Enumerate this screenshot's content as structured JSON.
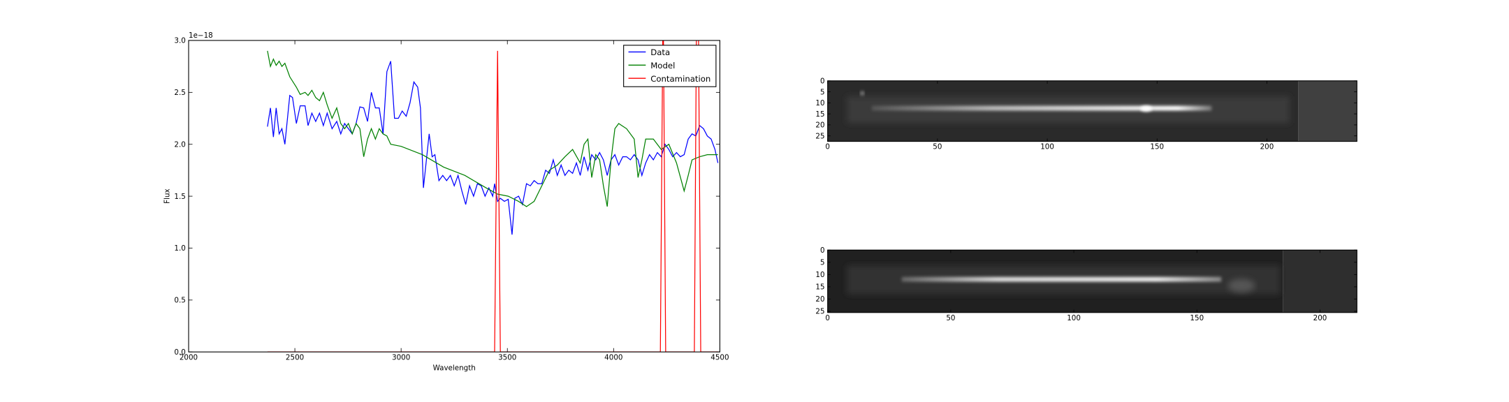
{
  "chart_data": [
    {
      "type": "line",
      "xlabel": "Wavelength",
      "ylabel": "Flux",
      "offset_label": "1e−18",
      "xlim": [
        2000,
        4500
      ],
      "ylim": [
        0,
        3
      ],
      "xticks": [
        2000,
        2500,
        3000,
        3500,
        4000,
        4500
      ],
      "yticks": [
        {
          "value": 0,
          "label": "0.0"
        },
        0.5,
        {
          "value": 1,
          "label": "1.0"
        },
        1.5,
        {
          "value": 2,
          "label": "2.0"
        },
        2.5,
        {
          "value": 3,
          "label": "3.0"
        }
      ],
      "legend": "upper right",
      "series": [
        {
          "name": "Data",
          "color": "#0000ff",
          "x": [
            2371,
            2385,
            2399,
            2412,
            2426,
            2439,
            2453,
            2476,
            2489,
            2507,
            2525,
            2548,
            2562,
            2580,
            2598,
            2616,
            2634,
            2652,
            2675,
            2697,
            2716,
            2734,
            2752,
            2770,
            2788,
            2806,
            2824,
            2842,
            2860,
            2879,
            2897,
            2915,
            2933,
            2951,
            2969,
            2987,
            3005,
            3024,
            3042,
            3060,
            3078,
            3091,
            3105,
            3119,
            3132,
            3146,
            3159,
            3178,
            3196,
            3214,
            3232,
            3250,
            3268,
            3286,
            3304,
            3322,
            3341,
            3359,
            3377,
            3395,
            3413,
            3431,
            3440,
            3454,
            3467,
            3486,
            3504,
            3522,
            3535,
            3553,
            3571,
            3590,
            3608,
            3626,
            3644,
            3662,
            3680,
            3698,
            3716,
            3735,
            3753,
            3771,
            3789,
            3807,
            3825,
            3843,
            3861,
            3879,
            3897,
            3916,
            3934,
            3952,
            3970,
            3988,
            4006,
            4024,
            4043,
            4061,
            4079,
            4097,
            4115,
            4133,
            4151,
            4169,
            4187,
            4206,
            4224,
            4242,
            4260,
            4278,
            4296,
            4314,
            4332,
            4351,
            4369,
            4387,
            4405,
            4423,
            4441,
            4459,
            4477,
            4491
          ],
          "values": [
            2.17,
            2.35,
            2.07,
            2.35,
            2.1,
            2.15,
            2.0,
            2.47,
            2.45,
            2.2,
            2.37,
            2.37,
            2.18,
            2.3,
            2.22,
            2.3,
            2.18,
            2.3,
            2.15,
            2.22,
            2.1,
            2.2,
            2.15,
            2.1,
            2.2,
            2.36,
            2.35,
            2.22,
            2.5,
            2.35,
            2.35,
            2.1,
            2.7,
            2.8,
            2.25,
            2.25,
            2.32,
            2.27,
            2.4,
            2.6,
            2.55,
            2.35,
            1.58,
            1.85,
            2.1,
            1.88,
            1.9,
            1.65,
            1.7,
            1.65,
            1.7,
            1.6,
            1.7,
            1.55,
            1.42,
            1.6,
            1.5,
            1.62,
            1.6,
            1.5,
            1.58,
            1.5,
            1.62,
            1.45,
            1.48,
            1.45,
            1.47,
            1.13,
            1.48,
            1.5,
            1.42,
            1.62,
            1.6,
            1.65,
            1.62,
            1.62,
            1.75,
            1.72,
            1.85,
            1.7,
            1.8,
            1.7,
            1.75,
            1.72,
            1.82,
            1.7,
            1.88,
            1.75,
            1.9,
            1.85,
            1.92,
            1.85,
            1.7,
            1.85,
            1.9,
            1.8,
            1.88,
            1.88,
            1.85,
            1.9,
            1.85,
            1.7,
            1.82,
            1.9,
            1.85,
            1.92,
            1.88,
            2.0,
            1.95,
            1.88,
            1.92,
            1.88,
            1.9,
            2.05,
            2.1,
            2.08,
            2.18,
            2.15,
            2.08,
            2.05,
            1.95,
            1.82
          ]
        },
        {
          "name": "Model",
          "color": "#008000",
          "x": [
            2371,
            2385,
            2399,
            2412,
            2426,
            2439,
            2453,
            2476,
            2507,
            2525,
            2548,
            2562,
            2580,
            2598,
            2616,
            2634,
            2652,
            2675,
            2697,
            2716,
            2734,
            2752,
            2770,
            2788,
            2806,
            2824,
            2842,
            2860,
            2879,
            2897,
            2915,
            2933,
            2951,
            3000,
            3100,
            3200,
            3300,
            3400,
            3454,
            3504,
            3553,
            3590,
            3626,
            3662,
            3698,
            3735,
            3771,
            3807,
            3843,
            3861,
            3879,
            3897,
            3916,
            3934,
            3952,
            3970,
            3988,
            4006,
            4024,
            4061,
            4097,
            4115,
            4133,
            4151,
            4187,
            4224,
            4260,
            4296,
            4332,
            4351,
            4369,
            4405,
            4441,
            4477,
            4491
          ],
          "values": [
            2.9,
            2.75,
            2.82,
            2.76,
            2.8,
            2.75,
            2.78,
            2.65,
            2.55,
            2.48,
            2.5,
            2.47,
            2.52,
            2.45,
            2.42,
            2.5,
            2.38,
            2.25,
            2.35,
            2.2,
            2.15,
            2.2,
            2.1,
            2.2,
            2.15,
            1.88,
            2.05,
            2.15,
            2.05,
            2.15,
            2.1,
            2.08,
            2.0,
            1.98,
            1.9,
            1.78,
            1.7,
            1.58,
            1.52,
            1.5,
            1.45,
            1.4,
            1.45,
            1.6,
            1.75,
            1.8,
            1.88,
            1.95,
            1.82,
            2.0,
            2.05,
            1.68,
            1.9,
            1.85,
            1.6,
            1.4,
            1.85,
            2.15,
            2.2,
            2.15,
            2.05,
            1.68,
            1.85,
            2.05,
            2.05,
            1.95,
            2.0,
            1.82,
            1.55,
            1.7,
            1.85,
            1.88,
            1.9,
            1.9,
            1.9
          ]
        },
        {
          "name": "Contamination",
          "color": "#ff0000",
          "x": [
            2371,
            3440,
            3454,
            3467,
            4220,
            4233,
            4245,
            4380,
            4391,
            4398,
            4410,
            4491
          ],
          "values": [
            0,
            0,
            2.9,
            0,
            0,
            3.5,
            0,
            0,
            3.5,
            3.5,
            0,
            0
          ]
        }
      ]
    },
    {
      "type": "image",
      "xlim": [
        0,
        241
      ],
      "ylim": [
        27.5,
        0
      ],
      "xticks": [
        0,
        50,
        100,
        150,
        200
      ],
      "yticks": [
        0,
        5,
        10,
        15,
        20,
        25
      ]
    },
    {
      "type": "image",
      "xlim": [
        0,
        215
      ],
      "ylim": [
        25.5,
        0
      ],
      "xticks": [
        0,
        50,
        100,
        150,
        200
      ],
      "yticks": [
        0,
        5,
        10,
        15,
        20,
        25
      ]
    }
  ]
}
